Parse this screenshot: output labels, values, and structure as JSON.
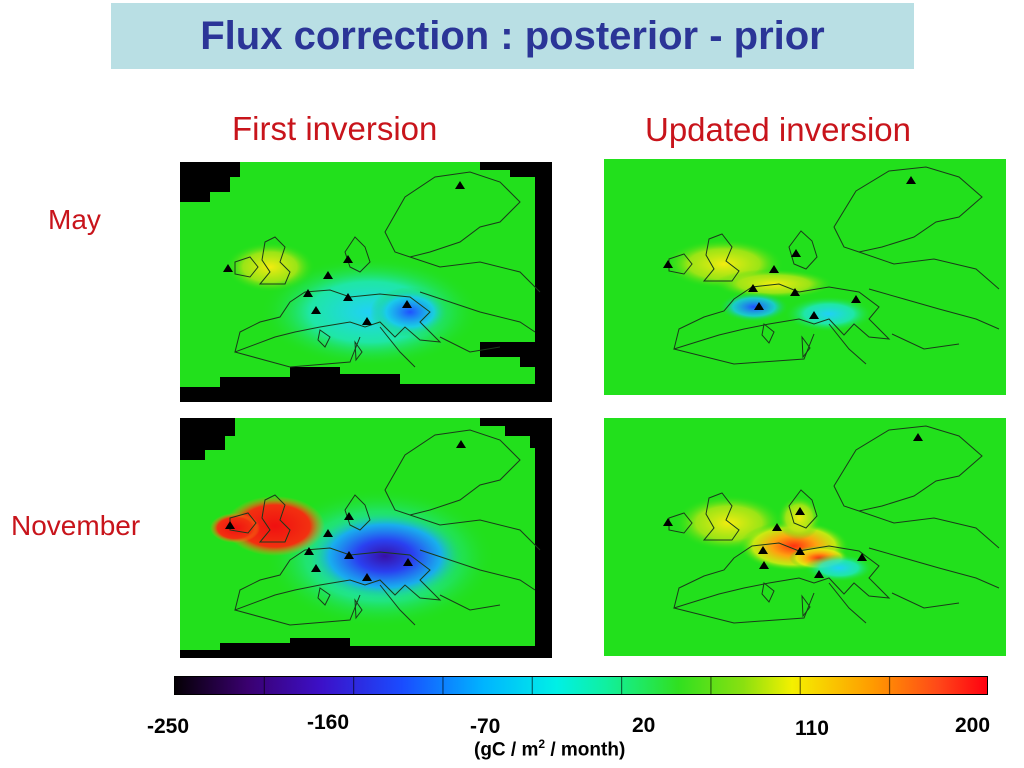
{
  "title": "Flux correction : posterior - prior",
  "columns": [
    "First inversion",
    "Updated inversion"
  ],
  "rows": [
    "May",
    "November"
  ],
  "colorbar": {
    "ticks": [
      "-250",
      "-160",
      "-70",
      "20",
      "110",
      "200"
    ],
    "units_prefix": "(gC / m",
    "units_exp": "2",
    "units_suffix": " / month)"
  },
  "colors": {
    "title_bg": "#b9dfe4",
    "title_text": "#2b3597",
    "label_text": "#c8141b",
    "base_green": "#22e01c"
  }
}
